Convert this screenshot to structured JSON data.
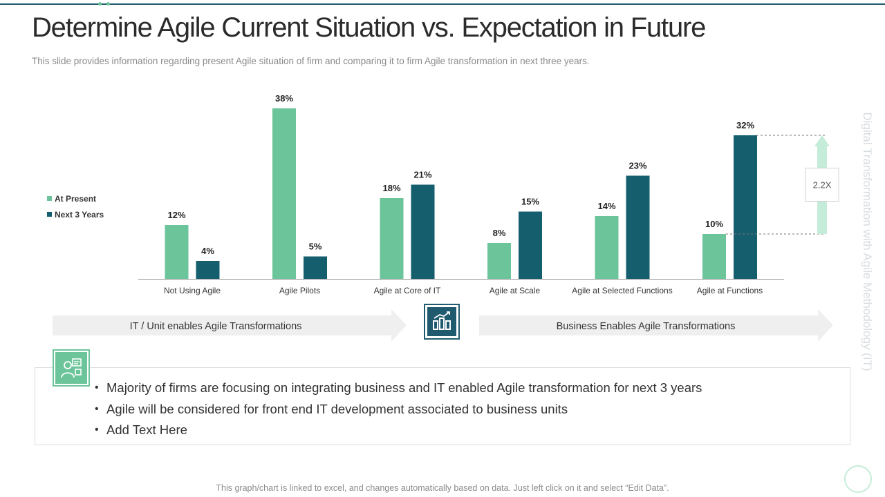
{
  "slide": {
    "title": "Determine Agile Current Situation vs. Expectation in Future",
    "subtitle": "This slide provides information regarding present Agile situation of firm and comparing it to firm Agile transformation in next three years.",
    "side_text": "Digital Transformation with Agile Methodology (IT)",
    "footer": "This graph/chart is linked to excel, and changes automatically based on data. Just left click on it and select “Edit Data”."
  },
  "colors": {
    "at_present": "#6cc49a",
    "next_3_years": "#155e6e",
    "accent_dark": "#1f5a6e",
    "arrow_light": "#c5ecd8"
  },
  "chart_data": {
    "type": "bar",
    "title": "",
    "xlabel": "",
    "ylabel": "",
    "ylim": [
      0,
      40
    ],
    "grid": false,
    "legend_position": "left",
    "categories": [
      "Not Using Agile",
      "Agile Pilots",
      "Agile at Core of IT",
      "Agile at Scale",
      "Agile at Selected Functions",
      "Agile at Functions"
    ],
    "series": [
      {
        "name": "At Present",
        "values": [
          12,
          38,
          18,
          8,
          14,
          10
        ],
        "labels": [
          "12%",
          "38%",
          "18%",
          "8%",
          "14%",
          "10%"
        ]
      },
      {
        "name": "Next 3 Years",
        "values": [
          4,
          5,
          21,
          15,
          23,
          32
        ],
        "labels": [
          "4%",
          "5%",
          "21%",
          "15%",
          "23%",
          "32%"
        ]
      }
    ],
    "annotation": {
      "text": "2.2X",
      "from": 10,
      "to": 32,
      "category": "Agile at Functions"
    }
  },
  "bands": {
    "left": "IT / Unit enables Agile Transformations",
    "right": "Business Enables Agile Transformations"
  },
  "icons": {
    "center": "growth-chart-icon",
    "box": "business-people-icon"
  },
  "bullets": [
    "Majority of firms are focusing on integrating business and IT enabled Agile transformation for next 3 years",
    "Agile will be considered for front end IT development associated to business units",
    "Add Text Here"
  ]
}
